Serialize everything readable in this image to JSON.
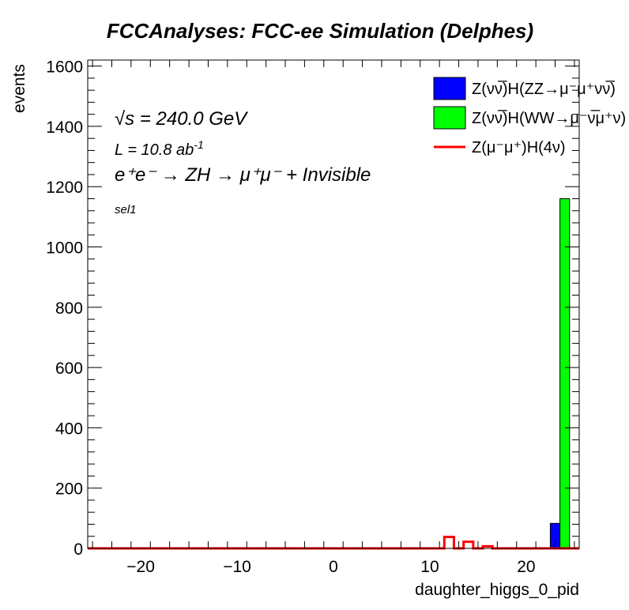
{
  "chart_data": {
    "type": "bar",
    "title": "FCCAnalyses: FCC-ee Simulation (Delphes)",
    "xlabel": "daughter_higgs_0_pid",
    "ylabel": "events",
    "xlim": [
      -25.5,
      25.5
    ],
    "ylim": [
      0,
      1620
    ],
    "stacked": true,
    "x_ticks": [
      -20,
      -10,
      0,
      10,
      20
    ],
    "x_tick_labels": [
      "−20",
      "−10",
      "0",
      "10",
      "20"
    ],
    "y_ticks": [
      0,
      200,
      400,
      600,
      800,
      1000,
      1200,
      1400,
      1600
    ],
    "grid": false,
    "legend_position": "top-right",
    "series": [
      {
        "name": "Z(νν̅)H(ZZ→μ⁻μ⁺νν̅)",
        "style": "filled",
        "color": "#0000ff",
        "bins": [
          {
            "x": 23,
            "value": 83
          }
        ]
      },
      {
        "name": "Z(νν̅)H(WW→μ⁻ν̅μ⁺ν)",
        "style": "filled",
        "color": "#00ff00",
        "bins": [
          {
            "x": 24,
            "value": 1160
          }
        ]
      },
      {
        "name": "Z(μ⁻μ⁺)H(4ν)",
        "style": "line",
        "color": "#ff0000",
        "bins": [
          {
            "x": 12,
            "value": 38
          },
          {
            "x": 14,
            "value": 22
          },
          {
            "x": 16,
            "value": 7
          }
        ]
      }
    ],
    "annotations": {
      "sqrt_s": "√s = 240.0 GeV",
      "lumi_prefix": "L = 10.8 ab",
      "lumi_exp": "-1",
      "process": "e⁺e⁻ → ZH → μ⁺μ⁻ + Invisible",
      "selection": "sel1"
    }
  }
}
